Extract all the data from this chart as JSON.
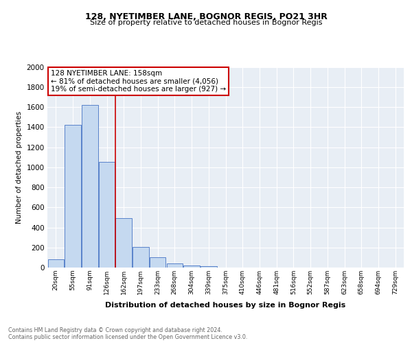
{
  "title": "128, NYETIMBER LANE, BOGNOR REGIS, PO21 3HR",
  "subtitle": "Size of property relative to detached houses in Bognor Regis",
  "xlabel": "Distribution of detached houses by size in Bognor Regis",
  "ylabel": "Number of detached properties",
  "categories": [
    "20sqm",
    "55sqm",
    "91sqm",
    "126sqm",
    "162sqm",
    "197sqm",
    "233sqm",
    "268sqm",
    "304sqm",
    "339sqm",
    "375sqm",
    "410sqm",
    "446sqm",
    "481sqm",
    "516sqm",
    "552sqm",
    "587sqm",
    "623sqm",
    "658sqm",
    "694sqm",
    "729sqm"
  ],
  "values": [
    80,
    1420,
    1620,
    1050,
    490,
    205,
    100,
    40,
    20,
    15,
    0,
    0,
    0,
    0,
    0,
    0,
    0,
    0,
    0,
    0,
    0
  ],
  "bar_color": "#c5d9f0",
  "bar_edge_color": "#4472c4",
  "marker_label": "128 NYETIMBER LANE: 158sqm",
  "annotation_line1": "← 81% of detached houses are smaller (4,056)",
  "annotation_line2": "19% of semi-detached houses are larger (927) →",
  "annotation_box_color": "#ffffff",
  "annotation_box_edge": "#cc0000",
  "vline_color": "#cc0000",
  "vline_x_index": 4,
  "ylim": [
    0,
    2000
  ],
  "yticks": [
    0,
    200,
    400,
    600,
    800,
    1000,
    1200,
    1400,
    1600,
    1800,
    2000
  ],
  "bg_color": "#e8eef5",
  "footer_line1": "Contains HM Land Registry data © Crown copyright and database right 2024.",
  "footer_line2": "Contains public sector information licensed under the Open Government Licence v3.0."
}
